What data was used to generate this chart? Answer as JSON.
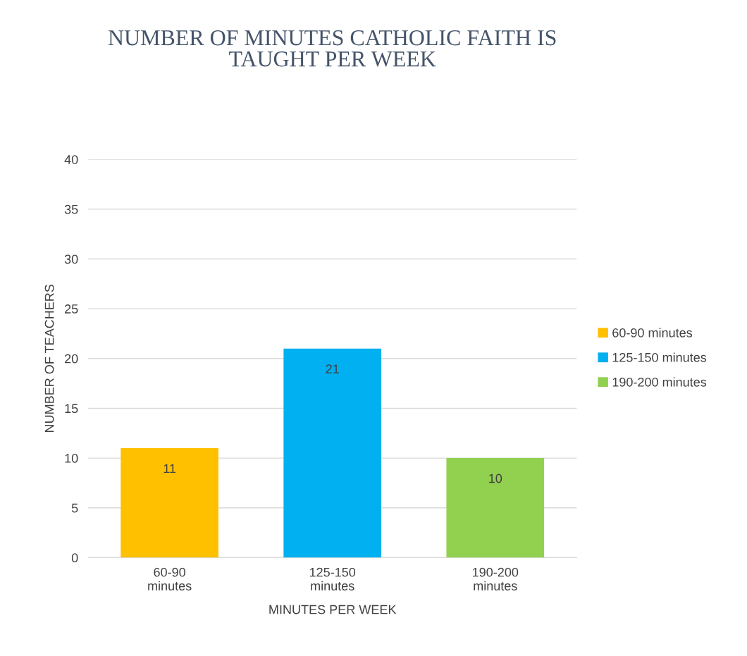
{
  "chart_data": {
    "type": "bar",
    "title": "NUMBER OF MINUTES CATHOLIC FAITH IS TAUGHT PER WEEK",
    "xlabel": "MINUTES PER WEEK",
    "ylabel": "NUMBER OF TEACHERS",
    "categories": [
      "60-90 minutes",
      "125-150 minutes",
      "190-200 minutes"
    ],
    "series": [
      {
        "name": "60-90 minutes",
        "color": "#ffc000",
        "values": [
          11,
          null,
          null
        ]
      },
      {
        "name": "125-150 minutes",
        "color": "#00b0f0",
        "values": [
          null,
          21,
          null
        ]
      },
      {
        "name": "190-200 minutes",
        "color": "#92d050",
        "values": [
          null,
          null,
          10
        ]
      }
    ],
    "ylim": [
      0,
      40
    ],
    "yticks": [
      0,
      5,
      10,
      15,
      20,
      25,
      30,
      35,
      40
    ],
    "grid": "y",
    "legend": "right",
    "data_labels": true
  }
}
